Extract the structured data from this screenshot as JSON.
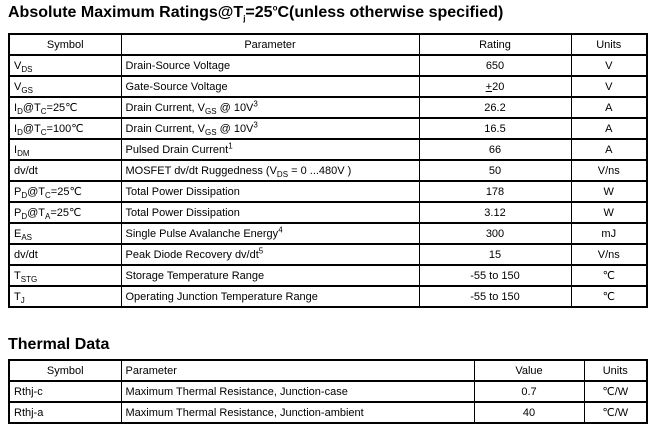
{
  "abs_max": {
    "title": "Absolute Maximum Ratings@T~j~=25^o^C(unless otherwise specified)",
    "headers": [
      "Symbol",
      "Parameter",
      "Rating",
      "Units"
    ],
    "rows": [
      {
        "symbol": "V~DS~",
        "parameter": "Drain-Source Voltage",
        "rating": "650",
        "units": "V"
      },
      {
        "symbol": "V~GS~",
        "parameter": "Gate-Source Voltage",
        "rating": "_+_20",
        "units": "V"
      },
      {
        "symbol": "I~D~@T~C~=25℃",
        "parameter": "Drain Current, V~GS~ @ 10V^3^",
        "rating": "26.2",
        "units": "A"
      },
      {
        "symbol": "I~D~@T~C~=100℃",
        "parameter": "Drain Current, V~GS~ @ 10V^3^",
        "rating": "16.5",
        "units": "A"
      },
      {
        "symbol": "I~DM~",
        "parameter": "Pulsed Drain Current^1^",
        "rating": "66",
        "units": "A"
      },
      {
        "symbol": "dv/dt",
        "parameter": "MOSFET dv/dt Ruggedness (V~DS~ = 0 ...480V )",
        "rating": "50",
        "units": "V/ns"
      },
      {
        "symbol": "P~D~@T~C~=25℃",
        "parameter": "Total Power Dissipation",
        "rating": "178",
        "units": "W"
      },
      {
        "symbol": "P~D~@T~A~=25℃",
        "parameter": "Total Power Dissipation",
        "rating": "3.12",
        "units": "W"
      },
      {
        "symbol": "E~AS~",
        "parameter": "Single Pulse Avalanche Energy^4^",
        "rating": "300",
        "units": "mJ"
      },
      {
        "symbol": "dv/dt",
        "parameter": "Peak Diode Recovery dv/dt^5^",
        "rating": "15",
        "units": "V/ns"
      },
      {
        "symbol": "T~STG~",
        "parameter": "Storage Temperature Range",
        "rating": "-55 to 150",
        "units": "℃"
      },
      {
        "symbol": "T~J~",
        "parameter": "Operating Junction Temperature Range",
        "rating": "-55 to 150",
        "units": "℃"
      }
    ]
  },
  "thermal": {
    "title": "Thermal Data",
    "headers": [
      "Symbol",
      "Parameter",
      "Value",
      "Units"
    ],
    "rows": [
      {
        "symbol": "Rthj-c",
        "parameter": "Maximum Thermal Resistance, Junction-case",
        "value": "0.7",
        "units": "℃/W"
      },
      {
        "symbol": "Rthj-a",
        "parameter": "Maximum Thermal Resistance, Junction-ambient",
        "value": "40",
        "units": "℃/W"
      }
    ]
  }
}
